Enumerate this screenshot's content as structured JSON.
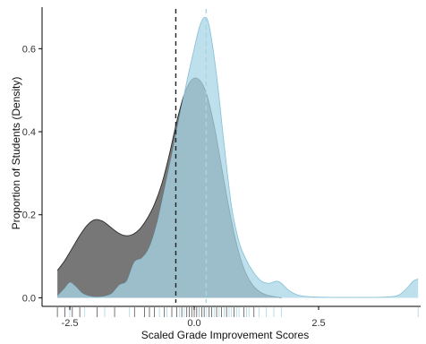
{
  "chart_data": {
    "type": "area",
    "title": "",
    "xlabel": "Scaled Grade Improvement Scores",
    "ylabel": "Proportion of Students (Density)",
    "xlim": [
      -2.95,
      4.55
    ],
    "ylim": [
      -0.012,
      0.7
    ],
    "x_ticks": [
      -2.5,
      0,
      2.5
    ],
    "x_tick_labels": [
      "-2.5",
      "0.0",
      "2.5"
    ],
    "y_ticks": [
      0,
      0.2,
      0.4,
      0.6
    ],
    "y_tick_labels": [
      "0.0",
      "0.2",
      "0.4",
      "0.6"
    ],
    "grid": false,
    "legend": "none",
    "series": [
      {
        "color": "#5f5f5f",
        "opacity": 0.85,
        "x": [
          -2.75,
          -2.6,
          -2.45,
          -2.3,
          -2.15,
          -2.0,
          -1.85,
          -1.7,
          -1.55,
          -1.4,
          -1.25,
          -1.1,
          -0.95,
          -0.8,
          -0.65,
          -0.5,
          -0.35,
          -0.2,
          -0.05,
          0.1,
          0.25,
          0.4,
          0.55,
          0.7,
          0.85,
          1.0,
          1.15,
          1.3,
          1.45,
          1.6,
          1.75
        ],
        "y": [
          0.066,
          0.09,
          0.12,
          0.15,
          0.175,
          0.188,
          0.185,
          0.172,
          0.158,
          0.15,
          0.152,
          0.165,
          0.19,
          0.225,
          0.275,
          0.345,
          0.425,
          0.49,
          0.525,
          0.525,
          0.49,
          0.415,
          0.315,
          0.215,
          0.13,
          0.07,
          0.035,
          0.016,
          0.007,
          0.003,
          0.0
        ]
      },
      {
        "color": "#a8d5e6",
        "opacity": 0.75,
        "x": [
          -2.75,
          -2.6,
          -2.5,
          -2.4,
          -2.25,
          -2.1,
          -1.95,
          -1.8,
          -1.65,
          -1.5,
          -1.35,
          -1.2,
          -1.05,
          -0.9,
          -0.75,
          -0.6,
          -0.45,
          -0.3,
          -0.15,
          0.0,
          0.1,
          0.2,
          0.3,
          0.45,
          0.6,
          0.75,
          0.9,
          1.05,
          1.2,
          1.35,
          1.5,
          1.65,
          1.75,
          1.9,
          2.1,
          2.4,
          2.8,
          3.2,
          3.6,
          3.9,
          4.1,
          4.25,
          4.4,
          4.5
        ],
        "y": [
          0.003,
          0.022,
          0.036,
          0.028,
          0.01,
          0.003,
          0.001,
          0.003,
          0.01,
          0.03,
          0.04,
          0.085,
          0.095,
          0.12,
          0.175,
          0.255,
          0.34,
          0.43,
          0.52,
          0.6,
          0.65,
          0.675,
          0.655,
          0.535,
          0.37,
          0.22,
          0.135,
          0.09,
          0.06,
          0.04,
          0.035,
          0.04,
          0.035,
          0.018,
          0.006,
          0.002,
          0.001,
          0.001,
          0.001,
          0.002,
          0.006,
          0.02,
          0.04,
          0.045
        ]
      }
    ],
    "reference_lines": [
      {
        "x": -0.37,
        "color": "#222222",
        "dash": "dashed"
      },
      {
        "x": 0.24,
        "color": "#a8d5e6",
        "dash": "dashed"
      }
    ],
    "rug_marks": [
      {
        "color": "#555555",
        "x": [
          -2.75,
          -2.6,
          -2.45,
          -2.3,
          -1.95,
          -1.6,
          -1.2,
          -1.0,
          -0.9,
          -0.8,
          -0.6,
          -0.45,
          -0.35,
          -0.25,
          -0.15,
          -0.1,
          -0.05,
          0.0,
          0.05,
          0.1,
          0.15,
          0.2,
          0.3,
          0.35,
          0.45,
          0.55,
          0.65,
          0.8,
          1.0,
          1.2
        ]
      },
      {
        "color": "#a8d5e6",
        "x": [
          -2.5,
          -2.2,
          -1.8,
          -1.3,
          -0.7,
          -0.55,
          -0.3,
          -0.2,
          0.1,
          0.25,
          0.4,
          0.5,
          0.6,
          0.7,
          0.75,
          0.85,
          0.9,
          1.05,
          1.1,
          1.3,
          1.45,
          1.6,
          1.75,
          4.5
        ]
      }
    ]
  }
}
